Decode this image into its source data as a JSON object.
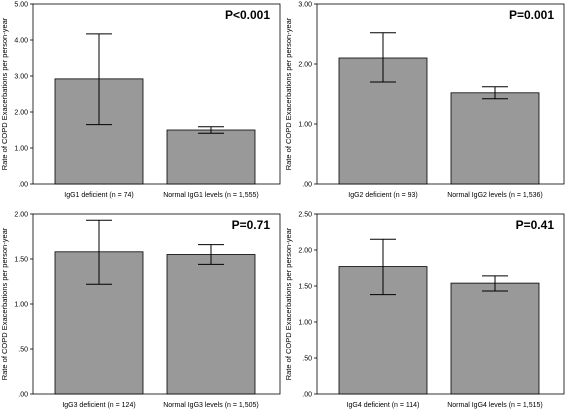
{
  "chart_data": [
    {
      "type": "bar",
      "ylabel": "Rate of COPD Exacerbations per person-year",
      "annotation": "P<0.001",
      "categories": [
        "IgG1 deficient (n = 74)",
        "Normal IgG1 levels (n = 1,555)"
      ],
      "values": [
        2.92,
        1.5
      ],
      "error_low": [
        1.65,
        1.41
      ],
      "error_high": [
        4.17,
        1.59
      ],
      "ylim": [
        0,
        5.0
      ],
      "yticks": [
        0,
        1.0,
        2.0,
        3.0,
        4.0,
        5.0
      ],
      "ytick_labels": [
        ".00",
        "1.00",
        "2.00",
        "3.00",
        "4.00",
        "5.00"
      ],
      "bar_color": "#999999"
    },
    {
      "type": "bar",
      "ylabel": "Rate of COPD Exacerbations per person-year",
      "annotation": "P=0.001",
      "categories": [
        "IgG2 deficient (n = 93)",
        "Normal IgG2 levels (n = 1,536)"
      ],
      "values": [
        2.1,
        1.52
      ],
      "error_low": [
        1.7,
        1.42
      ],
      "error_high": [
        2.52,
        1.62
      ],
      "ylim": [
        0,
        3.0
      ],
      "yticks": [
        0,
        1.0,
        2.0,
        3.0
      ],
      "ytick_labels": [
        ".00",
        "1.00",
        "2.00",
        "3.00"
      ],
      "bar_color": "#999999"
    },
    {
      "type": "bar",
      "ylabel": "Rate of COPD Exacerbations per person-year",
      "annotation": "P=0.71",
      "categories": [
        "IgG3 deficient (n = 124)",
        "Normal IgG3 levels (n = 1,505)"
      ],
      "values": [
        1.58,
        1.55
      ],
      "error_low": [
        1.22,
        1.44
      ],
      "error_high": [
        1.93,
        1.66
      ],
      "ylim": [
        0,
        2.0
      ],
      "yticks": [
        0,
        0.5,
        1.0,
        1.5,
        2.0
      ],
      "ytick_labels": [
        ".00",
        ".50",
        "1.00",
        "1.50",
        "2.00"
      ],
      "bar_color": "#999999"
    },
    {
      "type": "bar",
      "ylabel": "Rate of COPD Exacerbations per person-year",
      "annotation": "P=0.41",
      "categories": [
        "IgG4 deficient (n = 114)",
        "Normal IgG4 levels (n = 1,515)"
      ],
      "values": [
        1.77,
        1.54
      ],
      "error_low": [
        1.38,
        1.43
      ],
      "error_high": [
        2.15,
        1.64
      ],
      "ylim": [
        0,
        2.5
      ],
      "yticks": [
        0,
        0.5,
        1.0,
        1.5,
        2.0,
        2.5
      ],
      "ytick_labels": [
        ".00",
        ".50",
        "1.00",
        "1.50",
        "2.00",
        "2.50"
      ],
      "bar_color": "#999999"
    }
  ]
}
